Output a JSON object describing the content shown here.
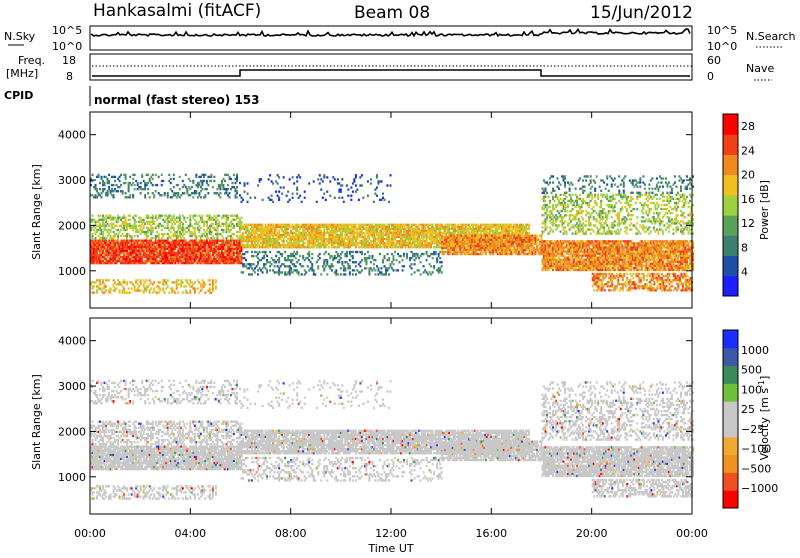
{
  "header": {
    "station": "Hankasalmi (fitACF)",
    "beam": "Beam 08",
    "date": "15/Jun/2012"
  },
  "noise_panel": {
    "left_label": "N.Sky",
    "right_label": "N.Search",
    "ticks": [
      "10^5",
      "10^0"
    ]
  },
  "freq_panel": {
    "left_label_1": "Freq.",
    "left_label_2": "[MHz]",
    "left_ticks": [
      "18",
      "8"
    ],
    "right_label": "Nave",
    "right_ticks": [
      "60",
      "0"
    ]
  },
  "cpid": {
    "label": "CPID",
    "value": "normal (fast stereo) 153"
  },
  "colors": {
    "power": [
      "#1d1dff",
      "#1d4fa8",
      "#3f7f6f",
      "#5aa05a",
      "#9fd040",
      "#f0c020",
      "#f08a20",
      "#f04018",
      "#ff0000"
    ],
    "velocity": [
      "#ff0000",
      "#f05020",
      "#f09020",
      "#f0a830",
      "#c8c8c8",
      "#c8c8c8",
      "#70c040",
      "#3a8a5a",
      "#3a5aa8",
      "#1d2dff"
    ],
    "ground_scatter": "#c8c8c8"
  },
  "chart_data": [
    {
      "type": "heatmap",
      "title": "Power",
      "ylabel": "Slant Range [km]",
      "xlabel": "Time UT",
      "y_ticks": [
        "1000",
        "2000",
        "3000",
        "4000"
      ],
      "ylim": [
        180,
        4500
      ],
      "x_ticks": [
        "00:00",
        "04:00",
        "08:00",
        "12:00",
        "16:00",
        "20:00",
        "00:00"
      ],
      "xlim_hours": [
        0,
        24
      ],
      "colorbar": {
        "label": "Power [dB]",
        "ticks": [
          "4",
          "8",
          "12",
          "16",
          "20",
          "24",
          "28"
        ],
        "range": [
          0,
          30
        ]
      }
    },
    {
      "type": "heatmap",
      "title": "Velocity",
      "ylabel": "Slant Range [km]",
      "xlabel": "Time UT",
      "y_ticks": [
        "1000",
        "2000",
        "3000",
        "4000"
      ],
      "ylim": [
        180,
        4500
      ],
      "x_ticks": [
        "00:00",
        "04:00",
        "08:00",
        "12:00",
        "16:00",
        "20:00",
        "00:00"
      ],
      "xlim_hours": [
        0,
        24
      ],
      "colorbar": {
        "label": "Velocity",
        "label_units": "[m s",
        "label_exp": "-1",
        "label_close": "]",
        "ticks": [
          "1000",
          "500",
          "100",
          "25",
          "−25",
          "−100",
          "−500",
          "−1000"
        ]
      }
    }
  ],
  "footer": {
    "xlabel": "Time UT"
  }
}
